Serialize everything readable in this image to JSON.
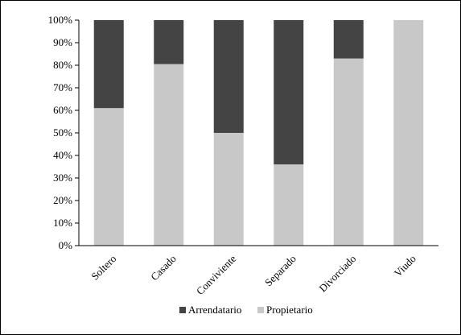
{
  "chart_data": {
    "type": "bar",
    "stacked": true,
    "categories": [
      "Soltero",
      "Casado",
      "Conviviente",
      "Separado",
      "Divorciado",
      "Viudo"
    ],
    "series": [
      {
        "name": "Propietario",
        "values": [
          61,
          80.5,
          50,
          36,
          83,
          100
        ],
        "color": "#c8c8c8"
      },
      {
        "name": "Arrendatario",
        "values": [
          39,
          19.5,
          50,
          64,
          17,
          0
        ],
        "color": "#444444"
      }
    ],
    "ylim": [
      0,
      100
    ],
    "yticks": [
      "0%",
      "10%",
      "20%",
      "30%",
      "40%",
      "50%",
      "60%",
      "70%",
      "80%",
      "90%",
      "100%"
    ],
    "legend_order": [
      "Arrendatario",
      "Propietario"
    ],
    "legend_position": "bottom",
    "grid": false
  }
}
